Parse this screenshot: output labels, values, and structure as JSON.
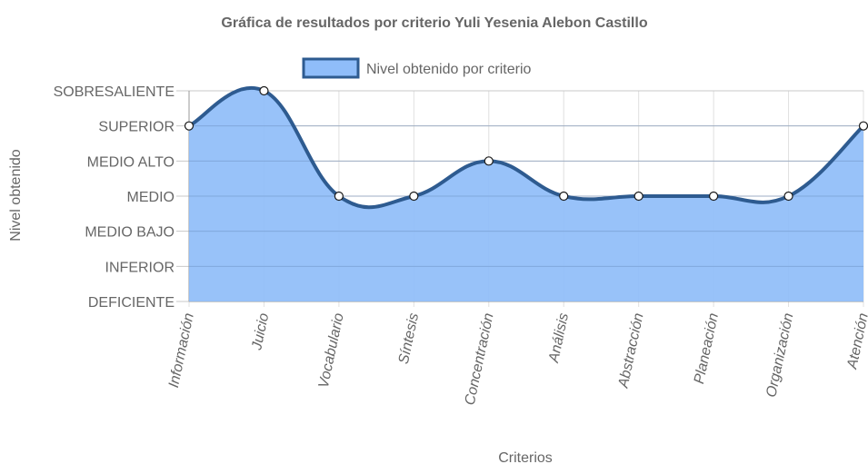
{
  "chart_data": {
    "type": "area",
    "title": "Gráfica de resultados por criterio Yuli Yesenia Alebon Castillo",
    "xlabel": "Criterios",
    "ylabel": "Nivel obtenido",
    "categories": [
      "Información",
      "Juicio",
      "Vocabulario",
      "Síntesis",
      "Concentración",
      "Análisis",
      "Abstracción",
      "Planeación",
      "Organización",
      "Atención"
    ],
    "y_levels": [
      "DEFICIENTE",
      "INFERIOR",
      "MEDIO BAJO",
      "MEDIO",
      "MEDIO ALTO",
      "SUPERIOR",
      "SOBRESALIENTE"
    ],
    "ylim": [
      0,
      6
    ],
    "series": [
      {
        "name": "Nivel obtenido por criterio",
        "values": [
          5,
          6,
          3,
          3,
          4,
          3,
          3,
          3,
          3,
          5
        ],
        "fill_color": "#8fbdf9",
        "line_color": "#2e5b90"
      }
    ],
    "grid": true,
    "legend_position": "top"
  }
}
